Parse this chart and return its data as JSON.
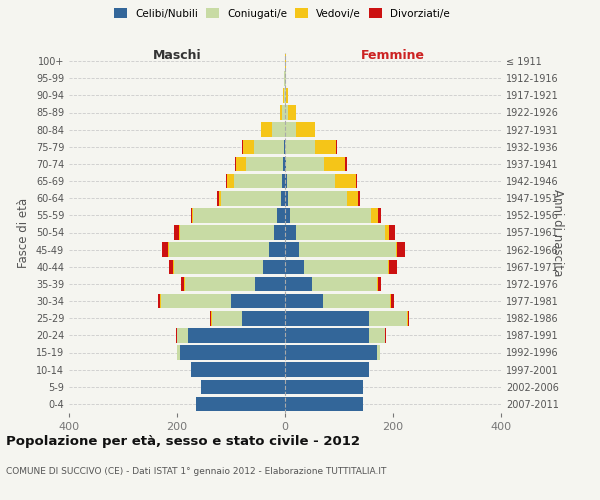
{
  "age_groups": [
    "0-4",
    "5-9",
    "10-14",
    "15-19",
    "20-24",
    "25-29",
    "30-34",
    "35-39",
    "40-44",
    "45-49",
    "50-54",
    "55-59",
    "60-64",
    "65-69",
    "70-74",
    "75-79",
    "80-84",
    "85-89",
    "90-94",
    "95-99",
    "100+"
  ],
  "birth_years": [
    "2007-2011",
    "2002-2006",
    "1997-2001",
    "1992-1996",
    "1987-1991",
    "1982-1986",
    "1977-1981",
    "1972-1976",
    "1967-1971",
    "1962-1966",
    "1957-1961",
    "1952-1956",
    "1947-1951",
    "1942-1946",
    "1937-1941",
    "1932-1936",
    "1927-1931",
    "1922-1926",
    "1917-1921",
    "1912-1916",
    "≤ 1911"
  ],
  "male_celibi": [
    165,
    155,
    175,
    195,
    180,
    80,
    100,
    55,
    40,
    30,
    20,
    15,
    8,
    5,
    3,
    2,
    0,
    0,
    0,
    0,
    0
  ],
  "male_coniugati": [
    0,
    0,
    0,
    5,
    20,
    55,
    130,
    130,
    165,
    185,
    175,
    155,
    110,
    90,
    70,
    55,
    25,
    5,
    2,
    1,
    0
  ],
  "male_vedovi": [
    0,
    0,
    0,
    0,
    0,
    2,
    2,
    2,
    2,
    2,
    2,
    2,
    5,
    12,
    18,
    20,
    20,
    5,
    1,
    0,
    0
  ],
  "male_divorziati": [
    0,
    0,
    0,
    0,
    1,
    2,
    3,
    5,
    8,
    10,
    8,
    3,
    2,
    3,
    2,
    2,
    0,
    0,
    0,
    0,
    0
  ],
  "female_celibi": [
    145,
    145,
    155,
    170,
    155,
    155,
    70,
    50,
    35,
    25,
    20,
    10,
    5,
    3,
    2,
    0,
    0,
    0,
    0,
    0,
    0
  ],
  "female_coniugati": [
    0,
    0,
    0,
    5,
    30,
    70,
    125,
    120,
    155,
    180,
    165,
    150,
    110,
    90,
    70,
    55,
    20,
    6,
    2,
    1,
    0
  ],
  "female_vedovi": [
    0,
    0,
    0,
    0,
    0,
    2,
    2,
    2,
    2,
    3,
    8,
    12,
    20,
    38,
    40,
    40,
    35,
    15,
    3,
    1,
    1
  ],
  "female_divorziati": [
    0,
    0,
    0,
    0,
    2,
    2,
    5,
    5,
    15,
    15,
    10,
    5,
    3,
    2,
    2,
    2,
    0,
    0,
    0,
    0,
    0
  ],
  "colors": {
    "celibi": "#336699",
    "coniugati": "#c8dba4",
    "vedovi": "#f5c518",
    "divorziati": "#cc1111"
  },
  "xlim": 400,
  "title": "Popolazione per età, sesso e stato civile - 2012",
  "subtitle": "COMUNE DI SUCCIVO (CE) - Dati ISTAT 1° gennaio 2012 - Elaborazione TUTTITALIA.IT",
  "ylabel_left": "Fasce di età",
  "ylabel_right": "Anni di nascita",
  "xlabel_left": "Maschi",
  "xlabel_right": "Femmine",
  "bg_color": "#f5f5f0",
  "bar_height": 0.85
}
